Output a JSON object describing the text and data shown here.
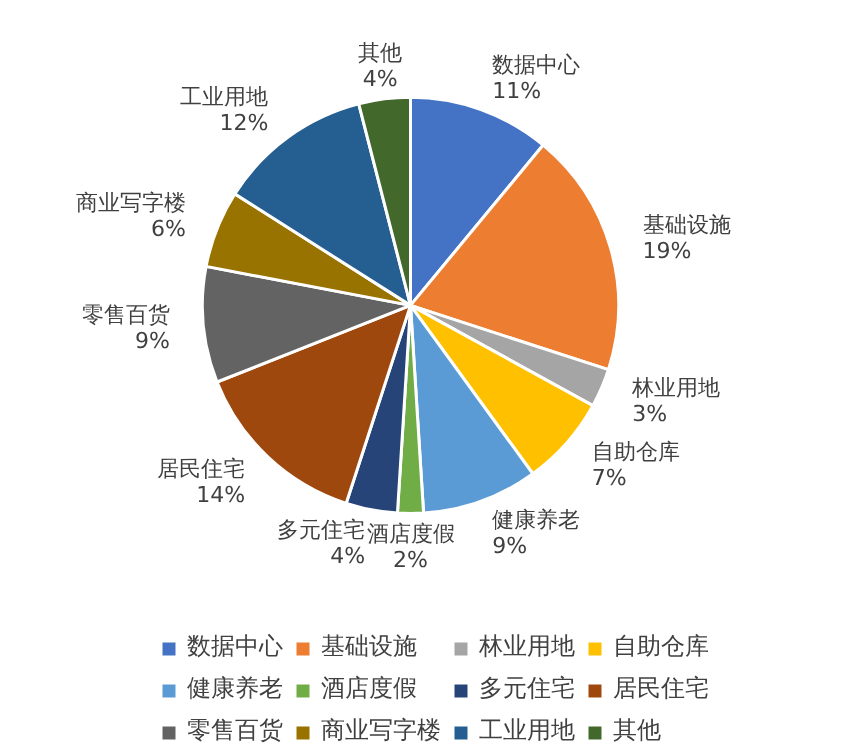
{
  "chart_data": {
    "type": "pie",
    "categories": [
      "数据中心",
      "基础设施",
      "林业用地",
      "自助仓库",
      "健康养老",
      "酒店度假",
      "多元住宅",
      "居民住宅",
      "零售百货",
      "商业写字楼",
      "工业用地",
      "其他"
    ],
    "values": [
      11,
      19,
      3,
      7,
      9,
      2,
      4,
      14,
      9,
      6,
      12,
      4
    ],
    "value_labels": [
      "11%",
      "19%",
      "3%",
      "7%",
      "9%",
      "2%",
      "4%",
      "14%",
      "9%",
      "6%",
      "12%",
      "4%"
    ],
    "colors": [
      "#4472c4",
      "#ed7d31",
      "#a5a5a5",
      "#ffc000",
      "#5b9bd5",
      "#70ad47",
      "#264478",
      "#9e480e",
      "#636363",
      "#997300",
      "#255e91",
      "#43682b"
    ],
    "legend": "bottom"
  }
}
